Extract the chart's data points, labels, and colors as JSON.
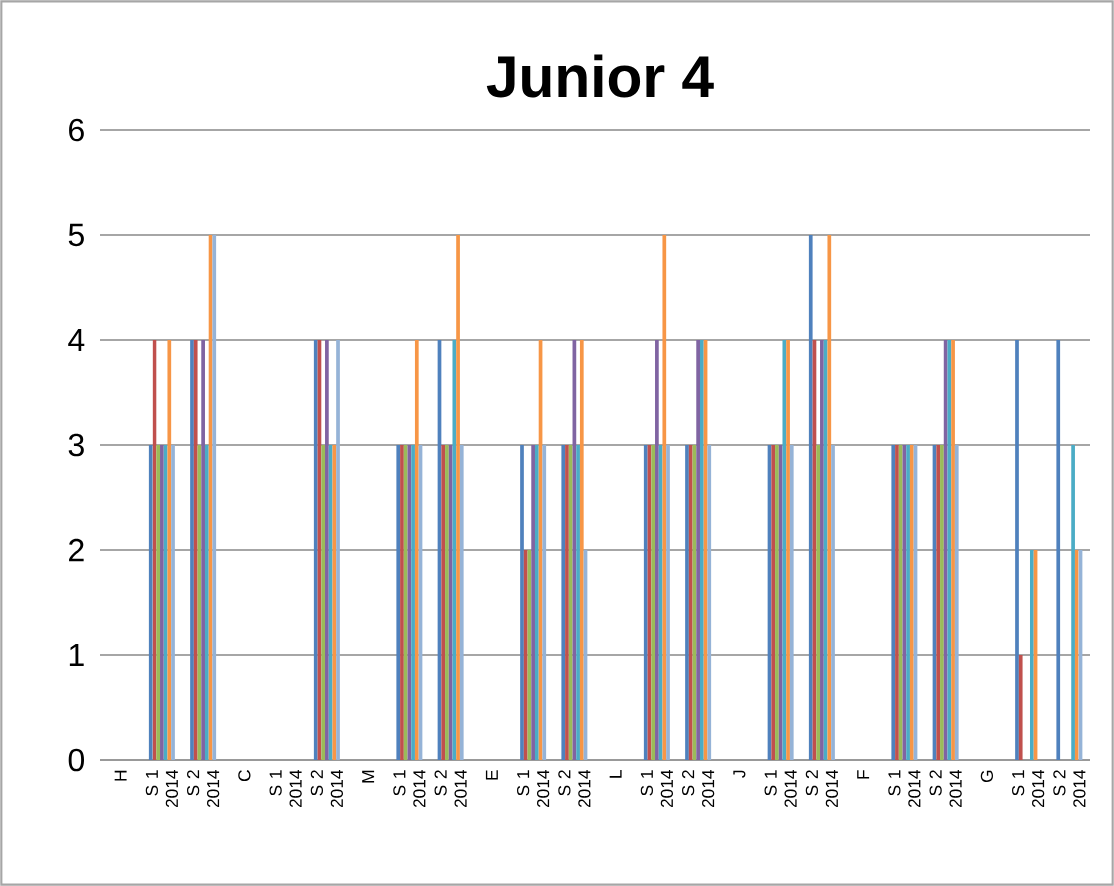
{
  "chart_data": {
    "type": "bar",
    "title": "Junior 4",
    "categories": [
      "H",
      "S 1 2014",
      "S 2 2014",
      "C",
      "S 1 2014",
      "S 2 2014",
      "M",
      "S 1 2014",
      "S 2 2014",
      "E",
      "S 1 2014",
      "S 2 2014",
      "L",
      "S 1 2014",
      "S 2 2014",
      "J",
      "S 1 2014",
      "S 2 2014",
      "F",
      "S 1 2014",
      "S 2 2014",
      "G",
      "S 1 2014",
      "S 2 2014"
    ],
    "series": [
      {
        "color": "#4f81bd",
        "values": [
          null,
          3,
          4,
          null,
          null,
          4,
          null,
          3,
          4,
          null,
          3,
          3,
          null,
          3,
          3,
          null,
          3,
          5,
          null,
          3,
          3,
          null,
          4,
          4
        ]
      },
      {
        "color": "#c0504d",
        "values": [
          null,
          4,
          4,
          null,
          null,
          4,
          null,
          3,
          3,
          null,
          2,
          3,
          null,
          3,
          3,
          null,
          3,
          4,
          null,
          3,
          3,
          null,
          1,
          0
        ]
      },
      {
        "color": "#9bbb59",
        "values": [
          null,
          3,
          3,
          null,
          null,
          3,
          null,
          3,
          3,
          null,
          2,
          3,
          null,
          3,
          3,
          null,
          3,
          3,
          null,
          3,
          3,
          null,
          0,
          0
        ]
      },
      {
        "color": "#8064a2",
        "values": [
          null,
          3,
          4,
          null,
          null,
          4,
          null,
          3,
          3,
          null,
          3,
          4,
          null,
          4,
          4,
          null,
          3,
          4,
          null,
          3,
          4,
          null,
          0,
          0
        ]
      },
      {
        "color": "#4bacc6",
        "values": [
          null,
          3,
          3,
          null,
          null,
          3,
          null,
          3,
          4,
          null,
          3,
          3,
          null,
          3,
          4,
          null,
          4,
          4,
          null,
          3,
          4,
          null,
          2,
          3
        ]
      },
      {
        "color": "#f79646",
        "values": [
          null,
          4,
          5,
          null,
          null,
          3,
          null,
          4,
          5,
          null,
          4,
          4,
          null,
          5,
          4,
          null,
          4,
          5,
          null,
          3,
          4,
          null,
          2,
          2
        ]
      },
      {
        "color": "#95b3d7",
        "values": [
          null,
          3,
          5,
          null,
          null,
          4,
          null,
          3,
          3,
          null,
          3,
          2,
          null,
          3,
          3,
          null,
          3,
          3,
          null,
          3,
          3,
          null,
          0,
          2
        ]
      }
    ],
    "ylim": [
      0,
      6
    ],
    "yticks": [
      0,
      1,
      2,
      3,
      4,
      5,
      6
    ],
    "grid": "y"
  }
}
